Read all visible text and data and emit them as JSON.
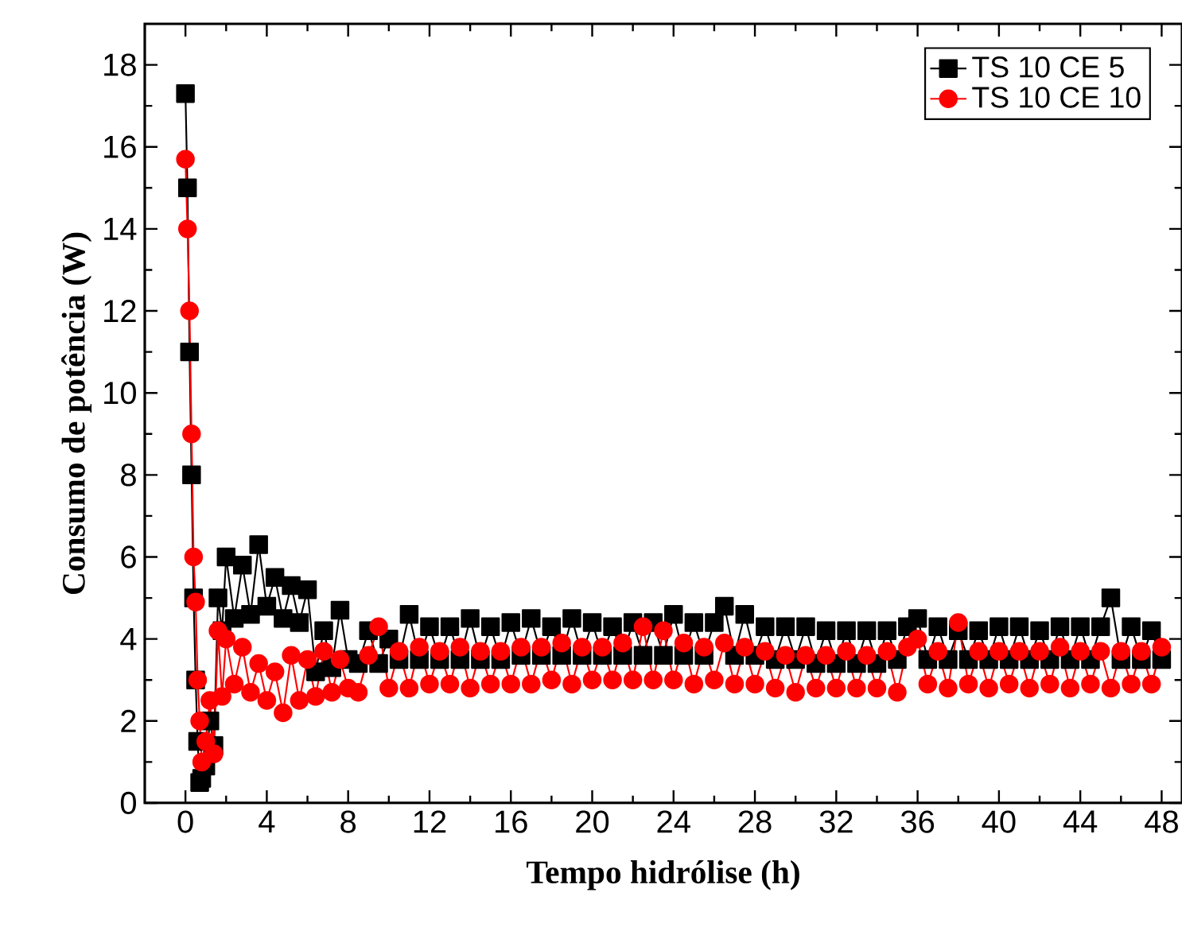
{
  "chart_data": {
    "type": "line",
    "xlabel": "Tempo hidrólise (h)",
    "ylabel": "Consumo de potência (W)",
    "x": [
      0,
      0.1,
      0.2,
      0.3,
      0.4,
      0.5,
      0.6,
      0.7,
      0.8,
      1.0,
      1.2,
      1.4,
      1.6,
      1.8,
      2.0,
      2.4,
      2.8,
      3.2,
      3.6,
      4.0,
      4.4,
      4.8,
      5.2,
      5.6,
      6.0,
      6.4,
      6.8,
      7.2,
      7.6,
      8.0,
      8.5,
      9,
      9.5,
      10,
      10.5,
      11,
      11.5,
      12,
      12.5,
      13,
      13.5,
      14,
      14.5,
      15,
      15.5,
      16,
      16.5,
      17,
      17.5,
      18,
      18.5,
      19,
      19.5,
      20,
      20.5,
      21,
      21.5,
      22,
      22.5,
      23,
      23.5,
      24,
      24.5,
      25,
      25.5,
      26,
      26.5,
      27,
      27.5,
      28,
      28.5,
      29,
      29.5,
      30,
      30.5,
      31,
      31.5,
      32,
      32.5,
      33,
      33.5,
      34,
      34.5,
      35,
      35.5,
      36,
      36.5,
      37,
      37.5,
      38,
      38.5,
      39,
      39.5,
      40,
      40.5,
      41,
      41.5,
      42,
      42.5,
      43,
      43.5,
      44,
      44.5,
      45,
      45.5,
      46,
      46.5,
      47,
      47.5,
      48
    ],
    "series": [
      {
        "name": "TS 10 CE 5",
        "color": "#000000",
        "marker": "square",
        "values": [
          17.3,
          15,
          11,
          8,
          5,
          3,
          1.5,
          0.5,
          0.6,
          0.9,
          2.0,
          1.4,
          5.0,
          4.2,
          6.0,
          4.5,
          5.8,
          4.6,
          6.3,
          4.8,
          5.5,
          4.5,
          5.3,
          4.4,
          5.2,
          3.2,
          4.2,
          3.3,
          4.7,
          3.5,
          3.4,
          4.2,
          3.4,
          4.0,
          3.5,
          4.6,
          3.5,
          4.3,
          3.5,
          4.3,
          3.5,
          4.5,
          3.5,
          4.3,
          3.5,
          4.4,
          3.6,
          4.5,
          3.6,
          4.3,
          3.6,
          4.5,
          3.6,
          4.4,
          3.6,
          4.3,
          3.6,
          4.4,
          3.6,
          4.4,
          3.6,
          4.6,
          3.6,
          4.4,
          3.6,
          4.4,
          4.8,
          3.6,
          4.6,
          3.6,
          4.3,
          3.5,
          4.3,
          3.5,
          4.3,
          3.4,
          4.2,
          3.4,
          4.2,
          3.4,
          4.2,
          3.4,
          4.2,
          3.5,
          4.3,
          4.5,
          3.5,
          4.3,
          3.5,
          4.2,
          3.5,
          4.2,
          3.5,
          4.3,
          3.5,
          4.3,
          3.5,
          4.2,
          3.5,
          4.3,
          3.5,
          4.3,
          3.5,
          4.3,
          5.0,
          3.5,
          4.3,
          3.5,
          4.2,
          3.5
        ]
      },
      {
        "name": "TS 10 CE 10",
        "color": "#ff0000",
        "marker": "circle",
        "values": [
          15.7,
          14,
          12,
          9,
          6,
          4.9,
          3,
          2,
          1.0,
          1.5,
          2.5,
          1.2,
          4.2,
          2.6,
          4.0,
          2.9,
          3.8,
          2.7,
          3.4,
          2.5,
          3.2,
          2.2,
          3.6,
          2.5,
          3.5,
          2.6,
          3.7,
          2.7,
          3.5,
          2.8,
          2.7,
          3.6,
          4.3,
          2.8,
          3.7,
          2.8,
          3.8,
          2.9,
          3.7,
          2.9,
          3.8,
          2.8,
          3.7,
          2.9,
          3.7,
          2.9,
          3.8,
          2.9,
          3.8,
          3.0,
          3.9,
          2.9,
          3.8,
          3.0,
          3.8,
          3.0,
          3.9,
          3.0,
          4.3,
          3.0,
          4.2,
          3.0,
          3.9,
          2.9,
          3.8,
          3.0,
          3.9,
          2.9,
          3.8,
          2.9,
          3.7,
          2.8,
          3.6,
          2.7,
          3.6,
          2.8,
          3.6,
          2.8,
          3.7,
          2.8,
          3.6,
          2.8,
          3.7,
          2.7,
          3.8,
          4.0,
          2.9,
          3.7,
          2.8,
          4.4,
          2.9,
          3.7,
          2.8,
          3.7,
          2.9,
          3.7,
          2.8,
          3.7,
          2.9,
          3.8,
          2.8,
          3.7,
          2.9,
          3.7,
          2.8,
          3.7,
          2.9,
          3.7,
          2.9,
          3.8
        ]
      }
    ],
    "xlim": [
      -2,
      49
    ],
    "ylim": [
      0,
      19
    ],
    "xticks": [
      0,
      4,
      8,
      12,
      16,
      20,
      24,
      28,
      32,
      36,
      40,
      44,
      48
    ],
    "yticks": [
      0,
      2,
      4,
      6,
      8,
      10,
      12,
      14,
      16,
      18
    ],
    "legend": "top right",
    "line_style": "solid",
    "grid": false
  }
}
